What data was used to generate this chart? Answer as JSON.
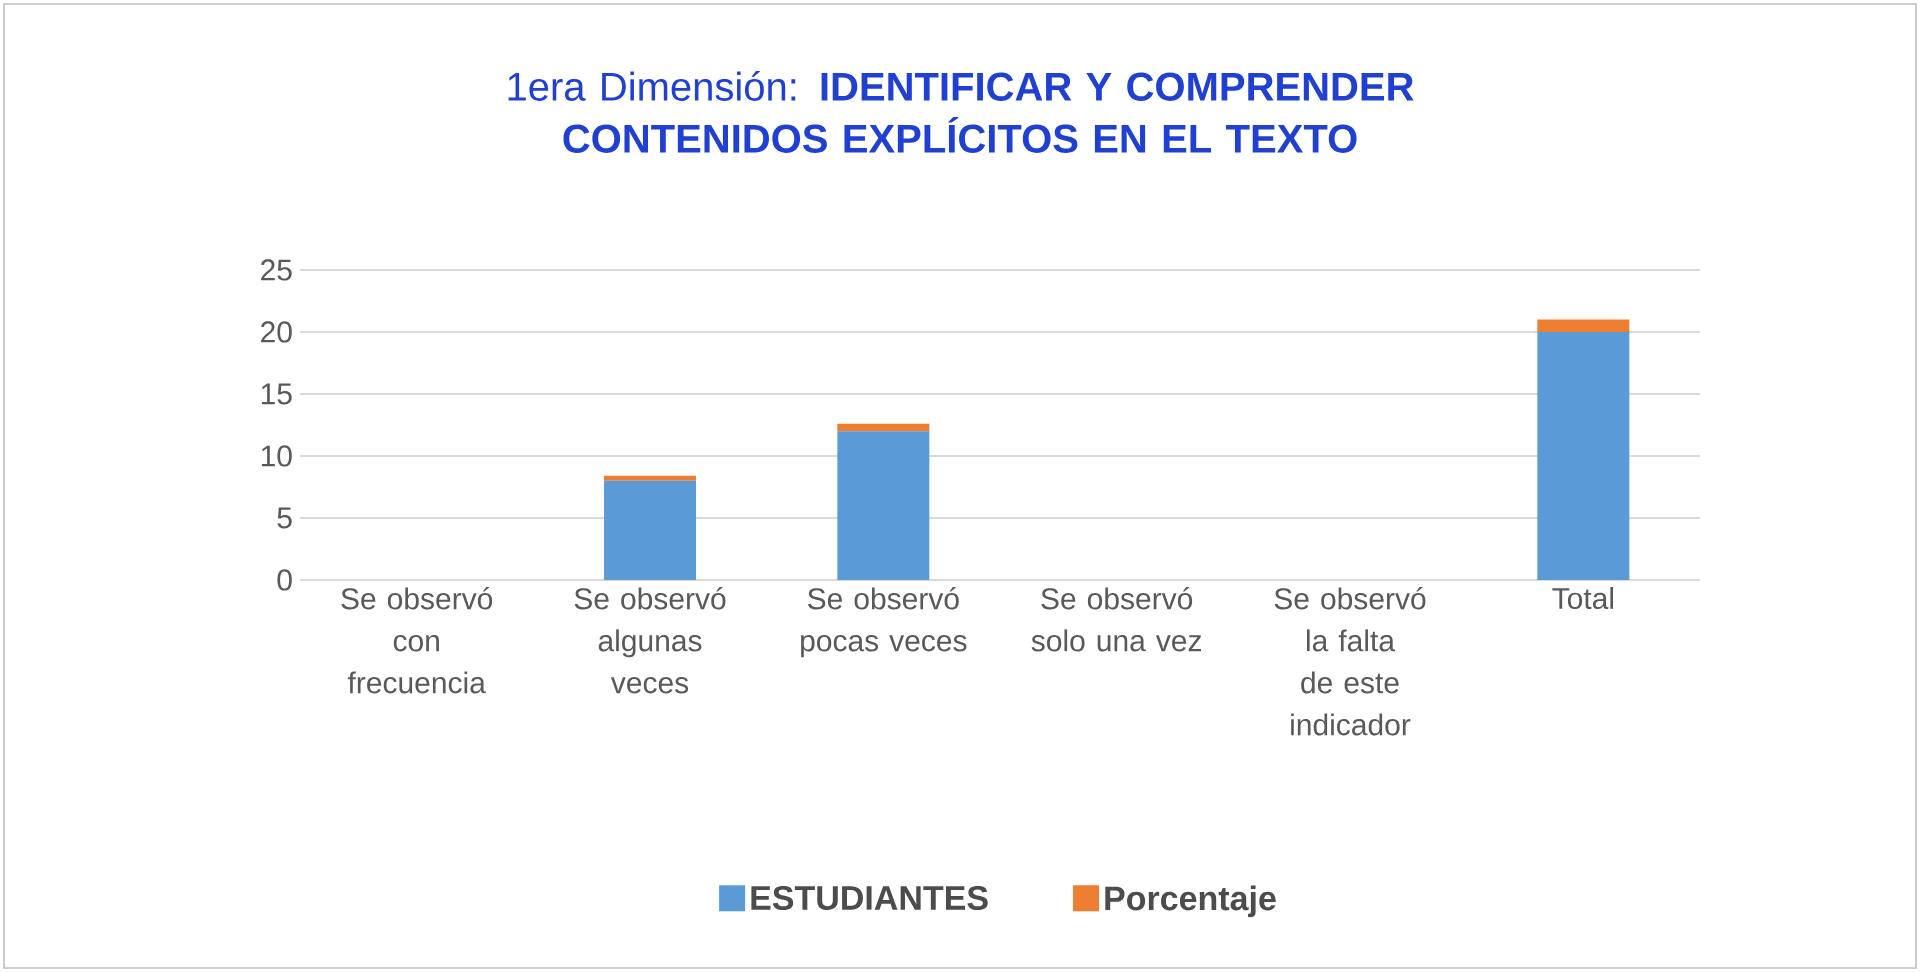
{
  "chart_data": {
    "type": "bar",
    "title": "1era Dimensión: **IDENTIFICAR Y COMPRENDER CONTENIDOS EXPLÍCITOS EN EL TEXTO**",
    "categories": [
      "Se observó con frecuencia",
      "Se observó algunas veces",
      "Se observó pocas veces",
      "Se observó solo una vez",
      "Se observó la falta de este indicador",
      "Total"
    ],
    "series": [
      {
        "name": "ESTUDIANTES",
        "color": "#5b9bd5",
        "values": [
          0,
          8,
          12,
          0,
          0,
          20
        ]
      },
      {
        "name": "Porcentaje",
        "color": "#ed7d31",
        "values": [
          0,
          0.4,
          0.6,
          0,
          0,
          1
        ]
      }
    ],
    "stacked": true,
    "ylim": [
      0,
      25
    ],
    "yticks": [
      0,
      5,
      10,
      15,
      20,
      25
    ],
    "grid": "y",
    "legend": "bottom"
  }
}
